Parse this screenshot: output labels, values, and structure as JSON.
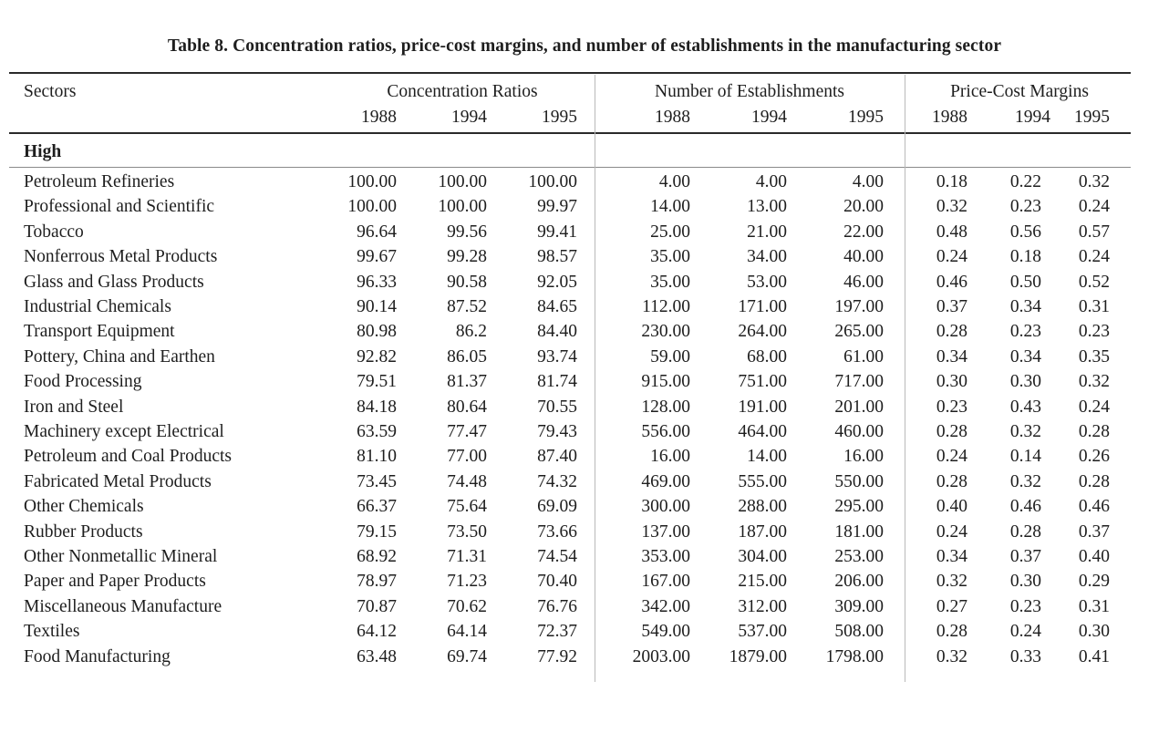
{
  "title": "Table 8.  Concentration ratios, price-cost margins, and number of establishments in the manufacturing sector",
  "header": {
    "sectors_label": "Sectors",
    "groups": [
      {
        "label": "Concentration Ratios",
        "years": [
          "1988",
          "1994",
          "1995"
        ]
      },
      {
        "label": "Number of Establishments",
        "years": [
          "1988",
          "1994",
          "1995"
        ]
      },
      {
        "label": "Price-Cost Margins",
        "years": [
          "1988",
          "1994",
          "1995"
        ]
      }
    ]
  },
  "section_label": "High",
  "rows": [
    {
      "sector": "Petroleum Refineries",
      "cr": [
        "100.00",
        "100.00",
        "100.00"
      ],
      "ne": [
        "4.00",
        "4.00",
        "4.00"
      ],
      "pcm": [
        "0.18",
        "0.22",
        "0.32"
      ]
    },
    {
      "sector": "Professional and Scientific",
      "cr": [
        "100.00",
        "100.00",
        "99.97"
      ],
      "ne": [
        "14.00",
        "13.00",
        "20.00"
      ],
      "pcm": [
        "0.32",
        "0.23",
        "0.24"
      ]
    },
    {
      "sector": "Tobacco",
      "cr": [
        "96.64",
        "99.56",
        "99.41"
      ],
      "ne": [
        "25.00",
        "21.00",
        "22.00"
      ],
      "pcm": [
        "0.48",
        "0.56",
        "0.57"
      ]
    },
    {
      "sector": "Nonferrous Metal Products",
      "cr": [
        "99.67",
        "99.28",
        "98.57"
      ],
      "ne": [
        "35.00",
        "34.00",
        "40.00"
      ],
      "pcm": [
        "0.24",
        "0.18",
        "0.24"
      ]
    },
    {
      "sector": "Glass and Glass Products",
      "cr": [
        "96.33",
        "90.58",
        "92.05"
      ],
      "ne": [
        "35.00",
        "53.00",
        "46.00"
      ],
      "pcm": [
        "0.46",
        "0.50",
        "0.52"
      ]
    },
    {
      "sector": "Industrial Chemicals",
      "cr": [
        "90.14",
        "87.52",
        "84.65"
      ],
      "ne": [
        "112.00",
        "171.00",
        "197.00"
      ],
      "pcm": [
        "0.37",
        "0.34",
        "0.31"
      ]
    },
    {
      "sector": "Transport Equipment",
      "cr": [
        "80.98",
        "86.2",
        "84.40"
      ],
      "ne": [
        "230.00",
        "264.00",
        "265.00"
      ],
      "pcm": [
        "0.28",
        "0.23",
        "0.23"
      ]
    },
    {
      "sector": "Pottery, China and Earthen",
      "cr": [
        "92.82",
        "86.05",
        "93.74"
      ],
      "ne": [
        "59.00",
        "68.00",
        "61.00"
      ],
      "pcm": [
        "0.34",
        "0.34",
        "0.35"
      ]
    },
    {
      "sector": "Food Processing",
      "cr": [
        "79.51",
        "81.37",
        "81.74"
      ],
      "ne": [
        "915.00",
        "751.00",
        "717.00"
      ],
      "pcm": [
        "0.30",
        "0.30",
        "0.32"
      ]
    },
    {
      "sector": "Iron and Steel",
      "cr": [
        "84.18",
        "80.64",
        "70.55"
      ],
      "ne": [
        "128.00",
        "191.00",
        "201.00"
      ],
      "pcm": [
        "0.23",
        "0.43",
        "0.24"
      ]
    },
    {
      "sector": "Machinery except Electrical",
      "cr": [
        "63.59",
        "77.47",
        "79.43"
      ],
      "ne": [
        "556.00",
        "464.00",
        "460.00"
      ],
      "pcm": [
        "0.28",
        "0.32",
        "0.28"
      ]
    },
    {
      "sector": "Petroleum and Coal Products",
      "cr": [
        "81.10",
        "77.00",
        "87.40"
      ],
      "ne": [
        "16.00",
        "14.00",
        "16.00"
      ],
      "pcm": [
        "0.24",
        "0.14",
        "0.26"
      ]
    },
    {
      "sector": "Fabricated Metal Products",
      "cr": [
        "73.45",
        "74.48",
        "74.32"
      ],
      "ne": [
        "469.00",
        "555.00",
        "550.00"
      ],
      "pcm": [
        "0.28",
        "0.32",
        "0.28"
      ]
    },
    {
      "sector": "Other Chemicals",
      "cr": [
        "66.37",
        "75.64",
        "69.09"
      ],
      "ne": [
        "300.00",
        "288.00",
        "295.00"
      ],
      "pcm": [
        "0.40",
        "0.46",
        "0.46"
      ]
    },
    {
      "sector": "Rubber Products",
      "cr": [
        "79.15",
        "73.50",
        "73.66"
      ],
      "ne": [
        "137.00",
        "187.00",
        "181.00"
      ],
      "pcm": [
        "0.24",
        "0.28",
        "0.37"
      ]
    },
    {
      "sector": "Other Nonmetallic Mineral",
      "cr": [
        "68.92",
        "71.31",
        "74.54"
      ],
      "ne": [
        "353.00",
        "304.00",
        "253.00"
      ],
      "pcm": [
        "0.34",
        "0.37",
        "0.40"
      ]
    },
    {
      "sector": "Paper and Paper Products",
      "cr": [
        "78.97",
        "71.23",
        "70.40"
      ],
      "ne": [
        "167.00",
        "215.00",
        "206.00"
      ],
      "pcm": [
        "0.32",
        "0.30",
        "0.29"
      ]
    },
    {
      "sector": "Miscellaneous Manufacture",
      "cr": [
        "70.87",
        "70.62",
        "76.76"
      ],
      "ne": [
        "342.00",
        "312.00",
        "309.00"
      ],
      "pcm": [
        "0.27",
        "0.23",
        "0.31"
      ]
    },
    {
      "sector": "Textiles",
      "cr": [
        "64.12",
        "64.14",
        "72.37"
      ],
      "ne": [
        "549.00",
        "537.00",
        "508.00"
      ],
      "pcm": [
        "0.28",
        "0.24",
        "0.30"
      ]
    },
    {
      "sector": "Food Manufacturing",
      "cr": [
        "63.48",
        "69.74",
        "77.92"
      ],
      "ne": [
        "2003.00",
        "1879.00",
        "1798.00"
      ],
      "pcm": [
        "0.32",
        "0.33",
        "0.41"
      ]
    }
  ]
}
